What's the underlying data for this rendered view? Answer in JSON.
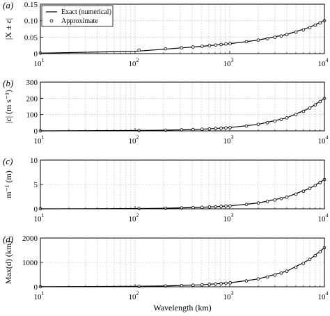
{
  "chart_data": [
    {
      "panel_label": "(a)",
      "type": "line",
      "ylabel": "|X ± ε|",
      "xscale": "log",
      "xlim": [
        10,
        10000
      ],
      "ylim": [
        0,
        0.15
      ],
      "yticks": [
        "0",
        "0.05",
        "0.10",
        "0.15"
      ],
      "grid": true,
      "legend": {
        "position": "top-left",
        "entries": [
          "Exact (numerical)",
          "Approximate"
        ]
      },
      "series": [
        {
          "name": "Exact (numerical)",
          "style": "line",
          "x": [
            10,
            100,
            200,
            500,
            1000,
            2000,
            4000,
            7000,
            10000
          ],
          "y": [
            0.0015,
            0.007,
            0.013,
            0.022,
            0.03,
            0.041,
            0.058,
            0.08,
            0.1
          ]
        },
        {
          "name": "Approximate",
          "style": "markers",
          "x": [
            10,
            110,
            210,
            310,
            410,
            510,
            610,
            710,
            810,
            910,
            1010,
            1500,
            2000,
            2500,
            3000,
            3500,
            4000,
            5000,
            6000,
            7000,
            8000,
            9000,
            10000
          ],
          "y": [
            0.0015,
            0.0105,
            0.0145,
            0.0175,
            0.02,
            0.0222,
            0.0241,
            0.0259,
            0.0276,
            0.0292,
            0.0305,
            0.036,
            0.041,
            0.0455,
            0.0495,
            0.0535,
            0.0575,
            0.065,
            0.072,
            0.079,
            0.086,
            0.093,
            0.1
          ]
        }
      ]
    },
    {
      "panel_label": "(b)",
      "type": "line",
      "ylabel": "|c| (m s⁻¹)",
      "xscale": "log",
      "xlim": [
        10,
        10000
      ],
      "ylim": [
        0,
        300
      ],
      "yticks": [
        "0",
        "100",
        "200",
        "300"
      ],
      "grid": true,
      "series": [
        {
          "name": "Exact (numerical)",
          "style": "line",
          "x": [
            10,
            100,
            200,
            500,
            1000,
            2000,
            4000,
            7000,
            10000
          ],
          "y": [
            0.2,
            2.0,
            4.0,
            10.0,
            20.0,
            40.0,
            80.0,
            140.0,
            200.0
          ]
        },
        {
          "name": "Approximate",
          "style": "markers",
          "x": [
            10,
            110,
            210,
            310,
            410,
            510,
            610,
            710,
            810,
            910,
            1010,
            1500,
            2000,
            2500,
            3000,
            3500,
            4000,
            5000,
            6000,
            7000,
            8000,
            9000,
            10000
          ],
          "y": [
            0.2,
            2.2,
            4.2,
            6.2,
            8.2,
            10.2,
            12.2,
            14.2,
            16.2,
            18.2,
            20.2,
            30.0,
            40.0,
            50.0,
            60.0,
            70.0,
            80.0,
            100.0,
            120.0,
            140.0,
            160.0,
            180.0,
            200.0
          ]
        }
      ]
    },
    {
      "panel_label": "(c)",
      "type": "line",
      "ylabel": "m⁻¹ (m)",
      "xscale": "log",
      "xlim": [
        10,
        10000
      ],
      "ylim": [
        0,
        10
      ],
      "yticks": [
        "0",
        "5",
        "10"
      ],
      "grid": true,
      "series": [
        {
          "name": "Exact (numerical)",
          "style": "line",
          "x": [
            10,
            100,
            200,
            500,
            1000,
            2000,
            4000,
            7000,
            10000
          ],
          "y": [
            0.006,
            0.06,
            0.12,
            0.3,
            0.6,
            1.2,
            2.4,
            4.2,
            6.0
          ]
        },
        {
          "name": "Approximate",
          "style": "markers",
          "x": [
            10,
            110,
            210,
            310,
            410,
            510,
            610,
            710,
            810,
            910,
            1010,
            1500,
            2000,
            2500,
            3000,
            3500,
            4000,
            5000,
            6000,
            7000,
            8000,
            9000,
            10000
          ],
          "y": [
            0.006,
            0.066,
            0.126,
            0.186,
            0.246,
            0.306,
            0.366,
            0.426,
            0.486,
            0.546,
            0.606,
            0.9,
            1.2,
            1.5,
            1.8,
            2.1,
            2.4,
            3.0,
            3.6,
            4.2,
            4.8,
            5.4,
            6.0
          ]
        }
      ]
    },
    {
      "panel_label": "(d)",
      "type": "line",
      "ylabel": "Max(d) (km)",
      "xlabel": "Wavelength (km)",
      "xscale": "log",
      "xlim": [
        10,
        10000
      ],
      "ylim": [
        0,
        2000
      ],
      "yticks": [
        "0",
        "1000",
        "2000"
      ],
      "grid": true,
      "series": [
        {
          "name": "Exact (numerical)",
          "style": "line",
          "x": [
            10,
            100,
            200,
            500,
            1000,
            2000,
            4000,
            7000,
            10000
          ],
          "y": [
            1.6,
            16,
            32,
            80,
            160,
            320,
            640,
            1120,
            1600
          ]
        },
        {
          "name": "Approximate",
          "style": "markers",
          "x": [
            10,
            110,
            210,
            310,
            410,
            510,
            610,
            710,
            810,
            910,
            1010,
            1500,
            2000,
            2500,
            3000,
            3500,
            4000,
            5000,
            6000,
            7000,
            8000,
            9000,
            10000
          ],
          "y": [
            1.6,
            17.6,
            33.6,
            49.6,
            65.6,
            81.6,
            97.6,
            113.6,
            129.6,
            145.6,
            161.6,
            240,
            320,
            400,
            480,
            560,
            640,
            800,
            960,
            1120,
            1280,
            1440,
            1600
          ]
        }
      ]
    }
  ],
  "xticks": [
    {
      "base": "10",
      "exp": "1"
    },
    {
      "base": "10",
      "exp": "2"
    },
    {
      "base": "10",
      "exp": "3"
    },
    {
      "base": "10",
      "exp": "4"
    }
  ]
}
